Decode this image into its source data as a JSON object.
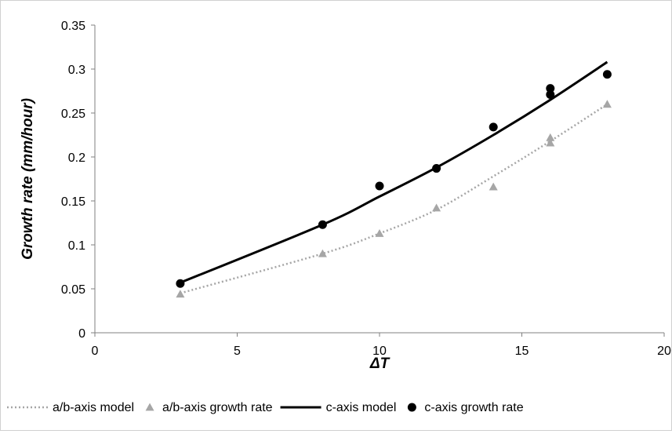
{
  "chart_data": {
    "type": "scatter",
    "title": "",
    "xlabel": "ΔT",
    "ylabel": "Growth rate (mm/hour)",
    "xlim": [
      0,
      20
    ],
    "ylim": [
      0,
      0.35
    ],
    "x_ticks": [
      0,
      5,
      10,
      15,
      20
    ],
    "y_ticks": [
      0,
      0.05,
      0.1,
      0.15,
      0.2,
      0.25,
      0.3,
      0.35
    ],
    "x_tick_labels": [
      "0",
      "5",
      "10",
      "15",
      "20"
    ],
    "y_tick_labels": [
      "0",
      "0.05",
      "0.1",
      "0.15",
      "0.2",
      "0.25",
      "0.3",
      "0.35"
    ],
    "grid": false,
    "legend_position": "bottom",
    "series": [
      {
        "name": "a/b-axis model",
        "kind": "line",
        "style": "dotted",
        "color": "#a6a6a6",
        "x": [
          3,
          8,
          10,
          12,
          14,
          16,
          18
        ],
        "y": [
          0.045,
          0.09,
          0.113,
          0.14,
          0.178,
          0.218,
          0.26
        ]
      },
      {
        "name": "a/b-axis growth rate",
        "kind": "markers",
        "marker": "triangle",
        "color": "#a6a6a6",
        "x": [
          3,
          8,
          10,
          12,
          14,
          16,
          16,
          18
        ],
        "y": [
          0.044,
          0.09,
          0.113,
          0.142,
          0.166,
          0.222,
          0.216,
          0.26
        ]
      },
      {
        "name": "c-axis model",
        "kind": "line",
        "style": "solid",
        "color": "#000000",
        "x": [
          3,
          8,
          10,
          12,
          14,
          16,
          18
        ],
        "y": [
          0.057,
          0.123,
          0.155,
          0.188,
          0.225,
          0.265,
          0.308
        ]
      },
      {
        "name": "c-axis growth rate",
        "kind": "markers",
        "marker": "circle",
        "color": "#000000",
        "x": [
          3,
          8,
          10,
          12,
          14,
          16,
          16,
          18
        ],
        "y": [
          0.056,
          0.123,
          0.167,
          0.187,
          0.234,
          0.278,
          0.271,
          0.294
        ]
      }
    ]
  }
}
